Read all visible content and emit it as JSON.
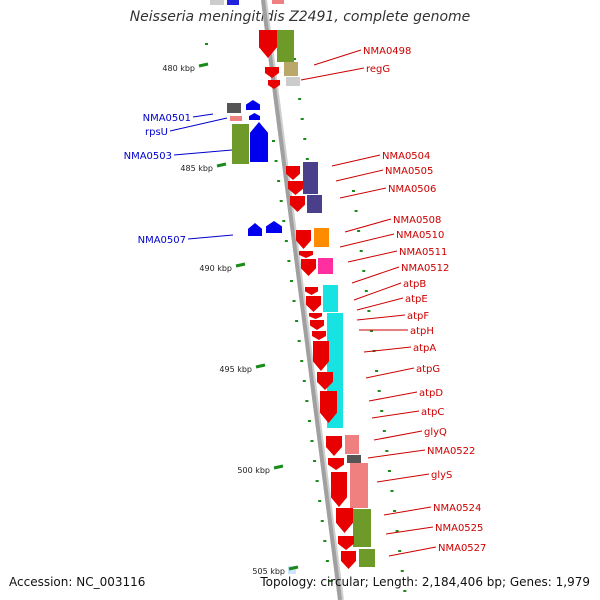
{
  "title": "Neisseria meningitidis Z2491, complete genome",
  "footer": {
    "accession": "Accession: NC_003116",
    "summary": "Topology: circular; Length: 2,184,406 bp; Genes: 1,979"
  },
  "colors": {
    "backbone": "#a0a0a0",
    "tick": "#1a8a1a",
    "label_blue": "#0000cc",
    "label_red": "#cc0000"
  },
  "kbp_labels": [
    "480 kbp",
    "485 kbp",
    "490 kbp",
    "495 kbp",
    "500 kbp",
    "505 kbp"
  ],
  "gene_labels": {
    "left": [
      "NMA0501",
      "rpsU",
      "NMA0503",
      "NMA0507"
    ],
    "right": [
      "NMA0498",
      "regG",
      "NMA0504",
      "NMA0505",
      "NMA0506",
      "NMA0508",
      "NMA0510",
      "NMA0511",
      "NMA0512",
      "atpB",
      "atpE",
      "atpF",
      "atpH",
      "atpA",
      "atpG",
      "atpD",
      "atpC",
      "glyQ",
      "NMA0522",
      "glyS",
      "NMA0524",
      "NMA0525",
      "NMA0527"
    ]
  }
}
